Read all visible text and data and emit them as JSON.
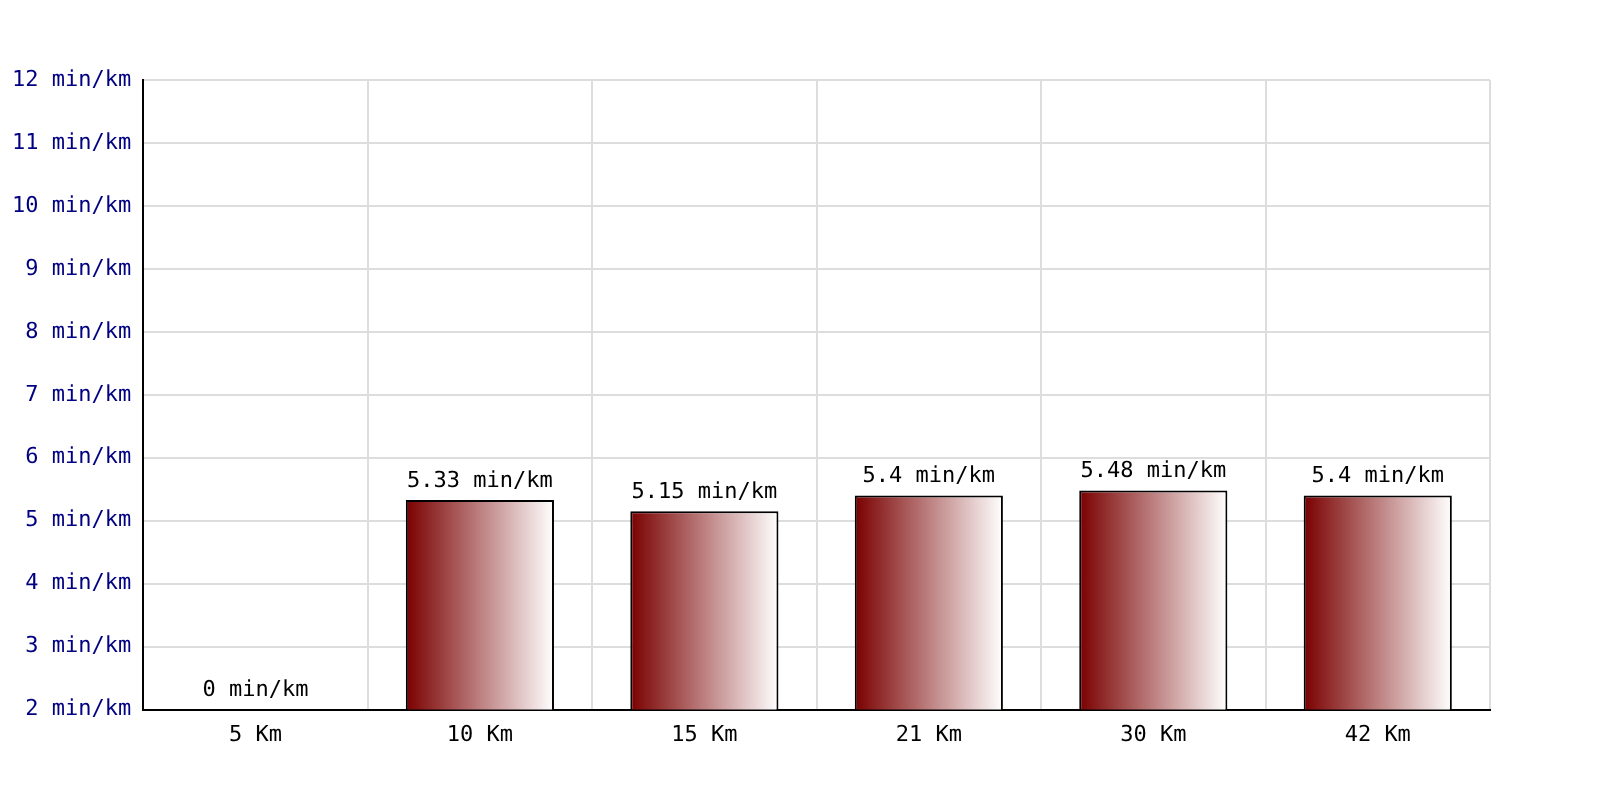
{
  "chart_data": {
    "type": "bar",
    "categories": [
      "5 Km",
      "10 Km",
      "15 Km",
      "21 Km",
      "30 Km",
      "42 Km"
    ],
    "values": [
      null,
      5.33,
      5.15,
      5.4,
      5.48,
      5.4
    ],
    "value_labels": [
      "0 min/km",
      "5.33 min/km",
      "5.15 min/km",
      "5.4 min/km",
      "5.48 min/km",
      "5.4 min/km"
    ],
    "color": "#7a0000",
    "ylim": [
      2,
      12
    ],
    "yticks": [
      {
        "value": 2,
        "label": "2 min/km"
      },
      {
        "value": 3,
        "label": "3 min/km"
      },
      {
        "value": 4,
        "label": "4 min/km"
      },
      {
        "value": 5,
        "label": "5 min/km"
      },
      {
        "value": 6,
        "label": "6 min/km"
      },
      {
        "value": 7,
        "label": "7 min/km"
      },
      {
        "value": 8,
        "label": "8 min/km"
      },
      {
        "value": 9,
        "label": "9 min/km"
      },
      {
        "value": 10,
        "label": "10 min/km"
      },
      {
        "value": 11,
        "label": "11 min/km"
      },
      {
        "value": 12,
        "label": "12 min/km"
      }
    ],
    "grid": true
  }
}
